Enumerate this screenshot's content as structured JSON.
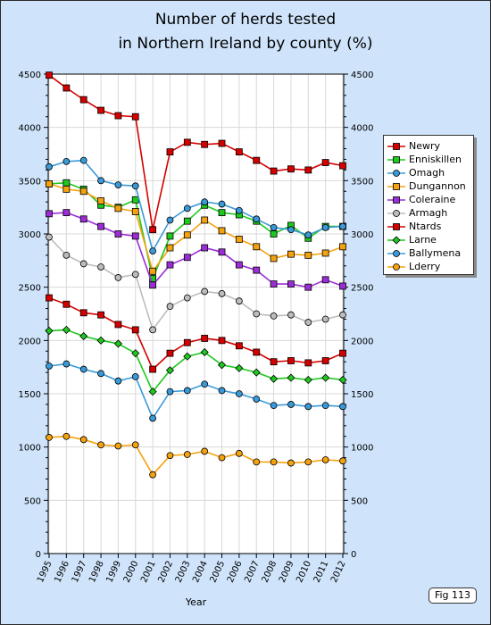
{
  "title_line1": "Number of herds tested",
  "title_line2": "in Northern Ireland by county (%)",
  "figure_label": "Fig 113",
  "chart_data": {
    "type": "line",
    "title": "Number of herds tested in Northern Ireland by county (%)",
    "xlabel": "Year",
    "ylabel": "",
    "ylim": [
      0,
      4500
    ],
    "yticks": [
      0,
      500,
      1000,
      1500,
      2000,
      2500,
      3000,
      3500,
      4000,
      4500
    ],
    "categories": [
      "1995",
      "1996",
      "1997",
      "1998",
      "1999",
      "2000",
      "2001",
      "2002",
      "2003",
      "2004",
      "2005",
      "2006",
      "2007",
      "2008",
      "2009",
      "2010",
      "2011",
      "2012"
    ],
    "grid": true,
    "legend_position": "right",
    "series": [
      {
        "name": "Newry",
        "color": "#d40000",
        "values": [
          4490,
          4370,
          4260,
          4160,
          4110,
          4100,
          3040,
          3770,
          3860,
          3840,
          3850,
          3770,
          3690,
          3590,
          3610,
          3600,
          3670,
          3640
        ]
      },
      {
        "name": "Enniskillen",
        "color": "#1ec81e",
        "values": [
          3470,
          3480,
          3420,
          3270,
          3250,
          3320,
          2580,
          2980,
          3120,
          3270,
          3200,
          3180,
          3120,
          3000,
          3080,
          2960,
          3070,
          3070
        ]
      },
      {
        "name": "Omagh",
        "color": "#3a9ad9",
        "values": [
          3630,
          3680,
          3690,
          3500,
          3460,
          3450,
          2840,
          3130,
          3240,
          3300,
          3280,
          3220,
          3140,
          3060,
          3040,
          2990,
          3060,
          3070
        ]
      },
      {
        "name": "Dungannon",
        "color": "#f5a20f",
        "values": [
          3470,
          3420,
          3400,
          3310,
          3240,
          3210,
          2650,
          2870,
          2990,
          3130,
          3030,
          2950,
          2880,
          2770,
          2810,
          2800,
          2820,
          2880
        ]
      },
      {
        "name": "Coleraine",
        "color": "#9b2dd6",
        "values": [
          3190,
          3200,
          3140,
          3070,
          3000,
          2980,
          2520,
          2710,
          2780,
          2870,
          2830,
          2710,
          2660,
          2530,
          2530,
          2500,
          2570,
          2510
        ]
      },
      {
        "name": "Armagh",
        "color": "#bdbdbd",
        "values": [
          2970,
          2800,
          2720,
          2690,
          2590,
          2620,
          2100,
          2320,
          2400,
          2460,
          2440,
          2370,
          2250,
          2230,
          2240,
          2170,
          2200,
          2240
        ]
      },
      {
        "name": "Ntards",
        "color": "#d40000",
        "values": [
          2400,
          2340,
          2260,
          2240,
          2150,
          2100,
          1730,
          1880,
          1980,
          2020,
          2000,
          1950,
          1890,
          1800,
          1810,
          1790,
          1810,
          1880
        ]
      },
      {
        "name": "Larne",
        "color": "#1ec81e",
        "values": [
          2090,
          2100,
          2040,
          2000,
          1970,
          1880,
          1520,
          1720,
          1850,
          1890,
          1770,
          1740,
          1700,
          1640,
          1650,
          1630,
          1650,
          1630
        ]
      },
      {
        "name": "Ballymena",
        "color": "#3a9ad9",
        "values": [
          1760,
          1780,
          1730,
          1690,
          1620,
          1660,
          1270,
          1520,
          1530,
          1590,
          1530,
          1500,
          1450,
          1390,
          1400,
          1380,
          1390,
          1380
        ]
      },
      {
        "name": "Lderry",
        "color": "#f5a20f",
        "values": [
          1090,
          1100,
          1070,
          1020,
          1010,
          1020,
          740,
          920,
          930,
          960,
          900,
          940,
          860,
          860,
          850,
          860,
          880,
          870
        ]
      }
    ]
  }
}
